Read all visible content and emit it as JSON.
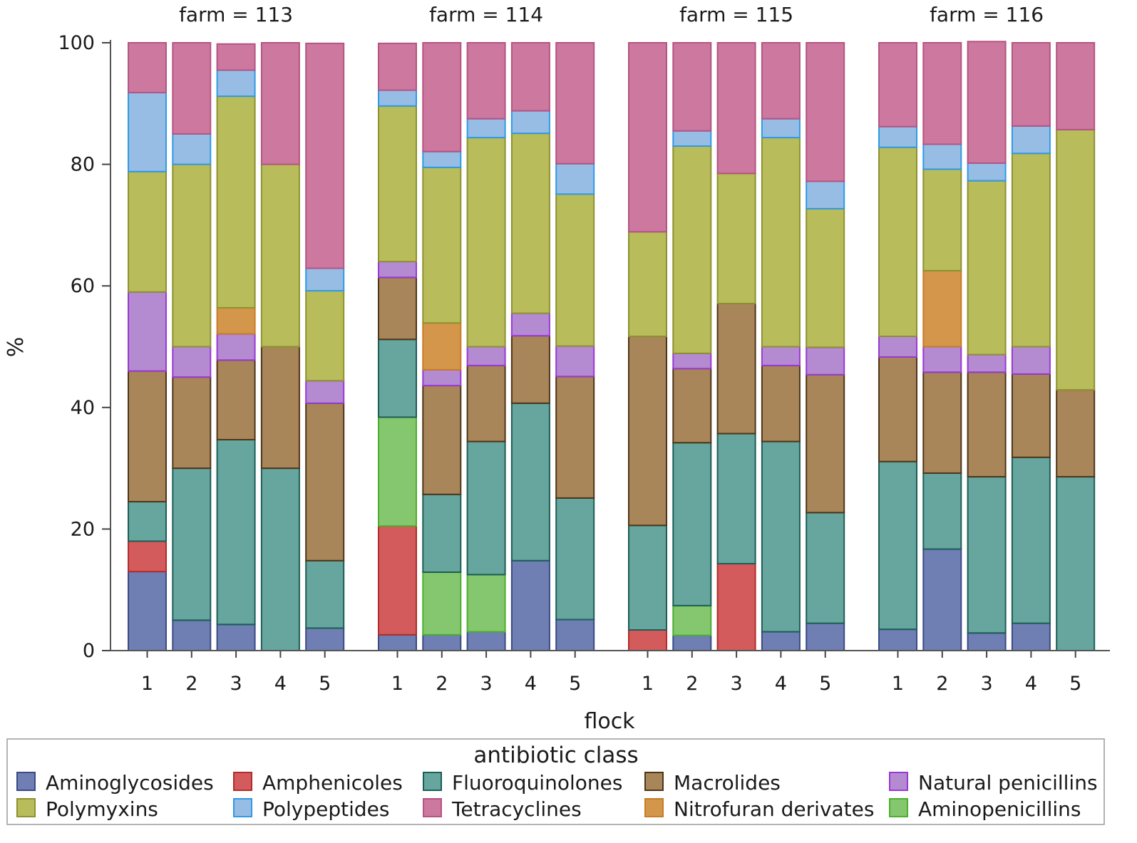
{
  "chart_data": {
    "type": "bar",
    "stacked": true,
    "facet_prefix": "farm = ",
    "farms": [
      "113",
      "114",
      "115",
      "116"
    ],
    "flocks": [
      "1",
      "2",
      "3",
      "4",
      "5"
    ],
    "xlabel": "flock",
    "ylabel": "%",
    "ylim": [
      0,
      100
    ],
    "yticks": [
      "0",
      "20",
      "40",
      "60",
      "80",
      "100"
    ],
    "grid": false,
    "legend": {
      "title": "antibiotic class",
      "placement": "bottom",
      "entries": [
        "Aminoglycosides",
        "Amphenicoles",
        "Fluoroquinolones",
        "Macrolides",
        "Natural penicillins",
        "Polymyxins",
        "Polypeptides",
        "Tetracyclines",
        "Nitrofuran derivates",
        "Aminopenicillins"
      ]
    },
    "classes": [
      {
        "name": "Aminoglycosides",
        "fill": "#6f7fb3",
        "stroke": "#3b4a85"
      },
      {
        "name": "Amphenicoles",
        "fill": "#d45b5b",
        "stroke": "#b02d2d"
      },
      {
        "name": "Fluoroquinolones",
        "fill": "#66a69e",
        "stroke": "#1c5e56"
      },
      {
        "name": "Macrolides",
        "fill": "#a8865a",
        "stroke": "#4f3518"
      },
      {
        "name": "Natural penicillins",
        "fill": "#b48ad1",
        "stroke": "#9a38d6"
      },
      {
        "name": "Polymyxins",
        "fill": "#b8bc5a",
        "stroke": "#8d9130"
      },
      {
        "name": "Polypeptides",
        "fill": "#98bde4",
        "stroke": "#2e9ae6"
      },
      {
        "name": "Tetracyclines",
        "fill": "#cc789f",
        "stroke": "#b55483"
      },
      {
        "name": "Nitrofuran derivates",
        "fill": "#d4964a",
        "stroke": "#c77c24"
      },
      {
        "name": "Aminopenicillins",
        "fill": "#84c76e",
        "stroke": "#4dae30"
      }
    ],
    "stack_order": [
      "Aminoglycosides",
      "Amphenicoles",
      "Aminopenicillins",
      "Fluoroquinolones",
      "Macrolides",
      "Natural penicillins",
      "Nitrofuran derivates",
      "Polymyxins",
      "Polypeptides",
      "Tetracyclines"
    ],
    "series": [
      {
        "name": "Aminoglycosides",
        "values": [
          13,
          5,
          4.3,
          0,
          3.7,
          2.6,
          2.6,
          3.1,
          14.8,
          5.1,
          0,
          2.5,
          0,
          3.1,
          4.5,
          3.5,
          16.7,
          2.9,
          4.5,
          0
        ]
      },
      {
        "name": "Amphenicoles",
        "values": [
          5,
          0,
          0,
          0,
          0,
          17.9,
          0,
          0,
          0,
          0,
          3.4,
          0,
          14.3,
          0,
          0,
          0,
          0,
          0,
          0,
          0
        ]
      },
      {
        "name": "Aminopenicillins",
        "values": [
          0,
          0,
          0,
          0,
          0,
          17.9,
          10.3,
          9.4,
          0,
          0,
          0,
          4.9,
          0,
          0,
          0,
          0,
          0,
          0,
          0,
          0
        ]
      },
      {
        "name": "Fluoroquinolones",
        "values": [
          6.5,
          25,
          30.4,
          30,
          11.1,
          12.8,
          12.8,
          21.9,
          25.9,
          20,
          17.2,
          26.8,
          21.4,
          31.3,
          18.2,
          27.6,
          12.5,
          25.7,
          27.3,
          28.6
        ]
      },
      {
        "name": "Macrolides",
        "values": [
          21.5,
          15,
          13.1,
          20,
          25.9,
          10.2,
          17.9,
          12.5,
          11.1,
          20,
          31.1,
          12.2,
          21.4,
          12.5,
          22.7,
          17.2,
          16.6,
          17.2,
          13.7,
          14.3
        ]
      },
      {
        "name": "Natural penicillins",
        "values": [
          13,
          5,
          4.3,
          0,
          3.7,
          2.6,
          2.6,
          3.1,
          3.7,
          5,
          0,
          2.5,
          0,
          3.1,
          4.5,
          3.4,
          4.2,
          2.9,
          4.5,
          0
        ]
      },
      {
        "name": "Nitrofuran derivates",
        "values": [
          0,
          0,
          4.3,
          0,
          0,
          0,
          7.7,
          0,
          0,
          0,
          0,
          0,
          0,
          0,
          0,
          0,
          12.5,
          0,
          0,
          0
        ]
      },
      {
        "name": "Polymyxins",
        "values": [
          19.8,
          30,
          34.8,
          30,
          14.8,
          25.6,
          25.6,
          34.4,
          29.6,
          25,
          17.2,
          34.1,
          21.4,
          34.4,
          22.8,
          31.1,
          16.7,
          28.6,
          31.8,
          42.8
        ]
      },
      {
        "name": "Polypeptides",
        "values": [
          13,
          5,
          4.3,
          0,
          3.7,
          2.6,
          2.6,
          3.1,
          3.7,
          5,
          0,
          2.5,
          0,
          3.1,
          4.5,
          3.4,
          4.1,
          2.9,
          4.5,
          0
        ]
      },
      {
        "name": "Tetracyclines",
        "values": [
          8.2,
          15,
          4.3,
          20,
          37,
          7.7,
          17.9,
          12.5,
          11.2,
          19.9,
          31.1,
          14.5,
          21.5,
          12.5,
          22.8,
          13.8,
          16.7,
          20,
          13.7,
          14.3
        ]
      }
    ]
  }
}
